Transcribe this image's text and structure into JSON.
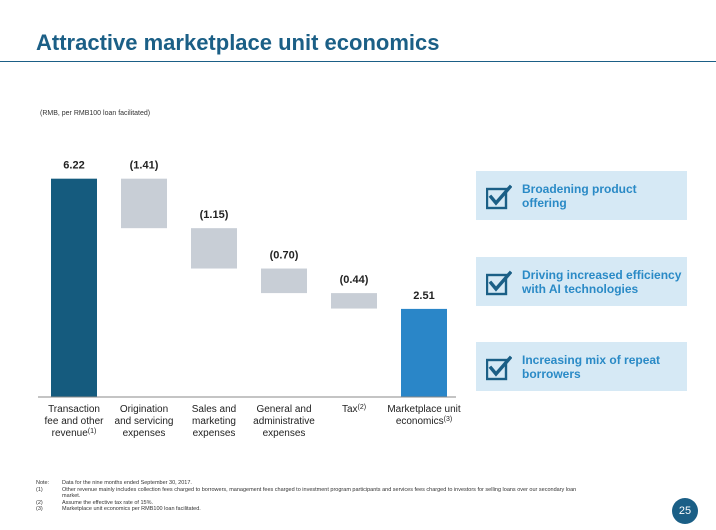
{
  "title": "Attractive marketplace unit economics",
  "unit_note": "(RMB, per RMB100 loan facilitated)",
  "chart_data": {
    "type": "waterfall",
    "unit": "RMB, per RMB100 loan facilitated",
    "categories": [
      {
        "lines": [
          "Transaction",
          "fee and other",
          "revenue"
        ],
        "sup": "(1)"
      },
      {
        "lines": [
          "Origination",
          "and servicing",
          "expenses"
        ],
        "sup": ""
      },
      {
        "lines": [
          "Sales and",
          "marketing",
          "expenses"
        ],
        "sup": ""
      },
      {
        "lines": [
          "General and",
          "administrative",
          "expenses"
        ],
        "sup": ""
      },
      {
        "lines": [
          "Tax"
        ],
        "sup": "(2)"
      },
      {
        "lines": [
          "Marketplace unit",
          "economics"
        ],
        "sup": "(3)"
      }
    ],
    "values": [
      6.22,
      -1.41,
      -1.15,
      -0.7,
      -0.44,
      2.51
    ],
    "value_labels": [
      "6.22",
      "(1.41)",
      "(1.15)",
      "(0.70)",
      "(0.44)",
      "2.51"
    ],
    "kinds": [
      "total",
      "decrease",
      "decrease",
      "decrease",
      "decrease",
      "total"
    ],
    "colors": {
      "first_total": "#155b7e",
      "decrease": "#c8ced6",
      "last_total": "#2a86c8"
    }
  },
  "callouts": [
    {
      "text": "Broadening product offering",
      "icon": "checkbox-check-icon"
    },
    {
      "text": "Driving increased efficiency with AI technologies",
      "icon": "checkbox-check-icon"
    },
    {
      "text": "Increasing mix of repeat borrowers",
      "icon": "checkbox-check-icon"
    }
  ],
  "footnotes": [
    {
      "key": "Note:",
      "text": "Data for the nine months ended September 30, 2017."
    },
    {
      "key": "(1)",
      "text": "Other revenue mainly includes collection fees charged to borrowers, management fees charged to investment program participants and services fees charged to investors for selling loans over our secondary loan market."
    },
    {
      "key": "(2)",
      "text": "Assume the effective tax rate of 15%."
    },
    {
      "key": "(3)",
      "text": "Marketplace unit economics per RMB100 loan facilitated."
    }
  ],
  "page_number": "25",
  "colors": {
    "accent": "#1b5f86",
    "callout_bg": "#d6e9f5",
    "callout_text": "#2a8ac6"
  }
}
